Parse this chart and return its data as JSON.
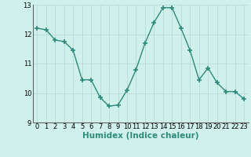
{
  "x": [
    0,
    1,
    2,
    3,
    4,
    5,
    6,
    7,
    8,
    9,
    10,
    11,
    12,
    13,
    14,
    15,
    16,
    17,
    18,
    19,
    20,
    21,
    22,
    23
  ],
  "y": [
    12.2,
    12.15,
    11.8,
    11.75,
    11.45,
    10.45,
    10.45,
    9.85,
    9.55,
    9.6,
    10.1,
    10.8,
    11.7,
    12.4,
    12.9,
    12.9,
    12.2,
    11.45,
    10.45,
    10.85,
    10.35,
    10.05,
    10.05,
    9.8
  ],
  "line_color": "#2e8b7a",
  "marker": "+",
  "marker_size": 4,
  "linewidth": 1.0,
  "xlabel": "Humidex (Indice chaleur)",
  "xlim": [
    -0.5,
    23.5
  ],
  "ylim": [
    9,
    13
  ],
  "yticks": [
    9,
    10,
    11,
    12,
    13
  ],
  "xticks": [
    0,
    1,
    2,
    3,
    4,
    5,
    6,
    7,
    8,
    9,
    10,
    11,
    12,
    13,
    14,
    15,
    16,
    17,
    18,
    19,
    20,
    21,
    22,
    23
  ],
  "bg_color": "#cff0eb",
  "grid_color": "#b8dbd5",
  "tick_fontsize": 6,
  "xlabel_fontsize": 7.5,
  "xlabel_fontweight": "bold"
}
